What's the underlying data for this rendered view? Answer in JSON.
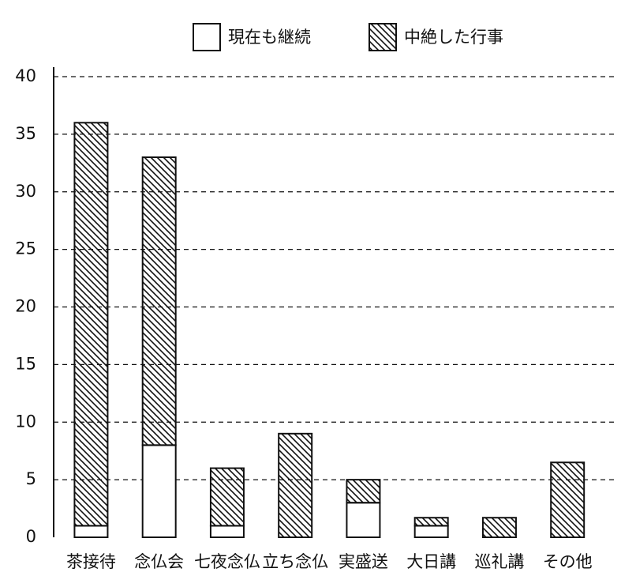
{
  "chart_data": {
    "type": "bar",
    "stacked": true,
    "categories": [
      "茶接待",
      "念仏会",
      "七夜念仏",
      "立ち念仏",
      "実盛送",
      "大日講",
      "巡礼講",
      "その他"
    ],
    "series": [
      {
        "name": "現在も継続",
        "color": "#ffffff",
        "values": [
          1,
          8,
          1,
          0,
          3,
          1,
          0,
          0
        ]
      },
      {
        "name": "中絶した行事",
        "color": "#000000",
        "pattern": "diagonal-hatch",
        "values": [
          35,
          25,
          5,
          9,
          2,
          0.7,
          1.7,
          6.5
        ]
      }
    ],
    "ylim": [
      0,
      40
    ],
    "yticks": [
      0,
      5,
      10,
      15,
      20,
      25,
      30,
      35,
      40
    ],
    "grid": true,
    "legend": "top"
  }
}
